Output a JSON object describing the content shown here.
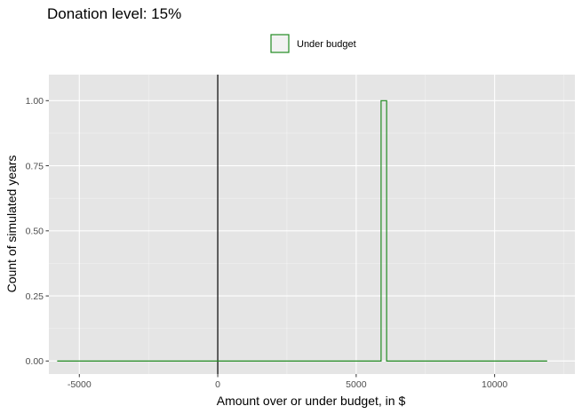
{
  "chart_data": {
    "type": "histogram-step",
    "title": "Donation level: 15%",
    "xlabel": "Amount over or under budget, in $",
    "ylabel": "Count of simulated years",
    "xlim": [
      -6100,
      12900
    ],
    "ylim": [
      -0.05,
      1.1
    ],
    "x_ticks": [
      -5000,
      0,
      5000,
      10000
    ],
    "x_tick_labels": [
      "-5000",
      "0",
      "5000",
      "10000"
    ],
    "y_ticks": [
      0.0,
      0.25,
      0.5,
      0.75,
      1.0
    ],
    "y_tick_labels": [
      "0.00",
      "0.25",
      "0.50",
      "0.75",
      "1.00"
    ],
    "vline_x": 0,
    "legend": {
      "position": "top",
      "entries": [
        "Under budget"
      ]
    },
    "grid": true,
    "colors": {
      "panel_bg": "#e5e5e5",
      "grid_major": "#ffffff",
      "series": "#228b22",
      "legend_fill": "#f2f2f2",
      "vline": "#000000"
    },
    "series": [
      {
        "name": "Under budget",
        "x": [
          -5800,
          5900,
          5900,
          6100,
          6100,
          11900
        ],
        "y": [
          0,
          0,
          1,
          1,
          0,
          0
        ]
      }
    ]
  }
}
